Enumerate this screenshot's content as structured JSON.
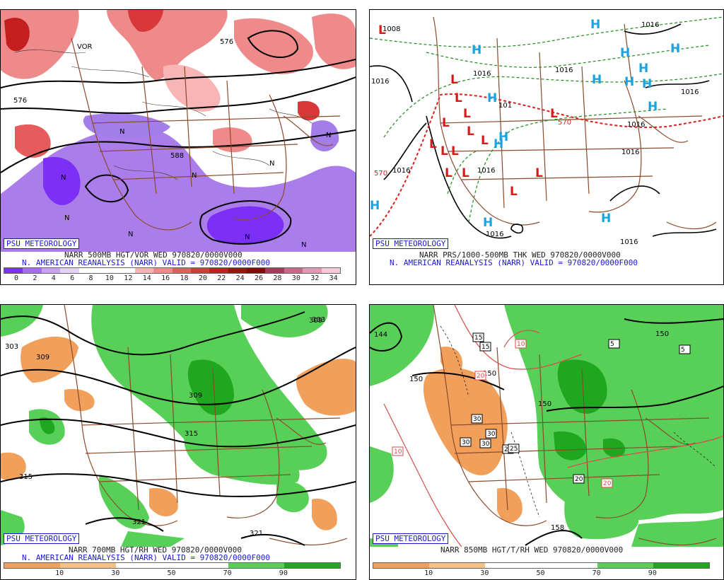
{
  "panels": {
    "p1": {
      "psu": "PSU METEOROLOGY",
      "line1": "NARR 500MB HGT/VOR WED 970820/0000V000",
      "line2": "N. AMERICAN REANALYSIS (NARR) VALID = 970820/0000F000",
      "colorbar": {
        "colors": [
          "#7b2ff7",
          "#a56ef2",
          "#c8a3ef",
          "#e2d4f2",
          "#ffffff",
          "#ffffff",
          "#ffffff",
          "#f7b5b5",
          "#ef8a8a",
          "#e65c5c",
          "#d93838",
          "#c41e1e",
          "#a30e0e",
          "#870808",
          "#a33c5a",
          "#c46a8a",
          "#e09ab5",
          "#f7c9da"
        ],
        "ticks": [
          "0",
          "2",
          "4",
          "6",
          "8",
          "10",
          "12",
          "14",
          "16",
          "18",
          "20",
          "22",
          "24",
          "26",
          "28",
          "30",
          "32",
          "34"
        ]
      },
      "contour_labels": [
        "576",
        "588",
        "576",
        "N",
        "N",
        "N",
        "N",
        "N",
        "N",
        "N",
        "N",
        "N",
        "VOR"
      ]
    },
    "p2": {
      "psu": "PSU METEOROLOGY",
      "line1": "NARR PRS/1000-500MB THK WED 970820/0000V000",
      "line2": "N. AMERICAN REANALYSIS (NARR) VALID = 970820/0000F000",
      "high": "H",
      "low": "L",
      "pressure_labels": [
        "1008",
        "1016",
        "1016",
        "1016",
        "1016",
        "1016",
        "1016",
        "1016",
        "1016",
        "1016",
        "1016",
        "1016"
      ],
      "thickness_labels": [
        "570",
        "570",
        "101"
      ]
    },
    "p3": {
      "psu": "PSU METEOROLOGY",
      "line1": "NARR 700MB HGT/RH WED 970820/0000V000",
      "line2": "N. AMERICAN REANALYSIS (NARR) VALID = 970820/0000F000",
      "colorbar": {
        "colors": [
          "#f0a05a",
          "#f5c08a",
          "#ffffff",
          "#ffffff",
          "#58d058",
          "#1fa81f"
        ],
        "ticks": [
          "10",
          "30",
          "50",
          "70",
          "90"
        ]
      },
      "contour_labels": [
        "303",
        "309",
        "309",
        "309",
        "315",
        "315",
        "321",
        "321",
        "303"
      ]
    },
    "p4": {
      "psu": "PSU METEOROLOGY",
      "line1": "NARR 850MB HGT/T/RH WED 970820/0000V000",
      "line2": "",
      "colorbar": {
        "colors": [
          "#f0a05a",
          "#f5c08a",
          "#ffffff",
          "#ffffff",
          "#58d058",
          "#1fa81f"
        ],
        "ticks": [
          "10",
          "30",
          "50",
          "70",
          "90"
        ]
      },
      "contour_labels": [
        "144",
        "150",
        "150",
        "150",
        "150",
        "158"
      ],
      "temp_labels": [
        "15",
        "15",
        "10",
        "20",
        "10",
        "25",
        "30",
        "30",
        "30",
        "25",
        "30",
        "20",
        "20",
        "5",
        "5"
      ]
    }
  }
}
